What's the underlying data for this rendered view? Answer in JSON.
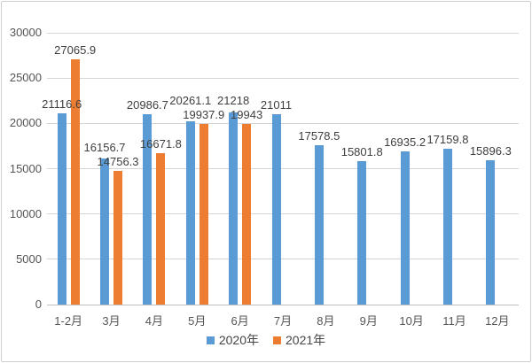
{
  "chart_data": {
    "type": "bar",
    "title": "",
    "xlabel": "",
    "ylabel": "",
    "categories": [
      "1-2月",
      "3月",
      "4月",
      "5月",
      "6月",
      "7月",
      "8月",
      "9月",
      "10月",
      "11月",
      "12月"
    ],
    "series": [
      {
        "name": "2020年",
        "color": "#5B9BD5",
        "values": [
          21116.6,
          16156.7,
          20986.7,
          20261.1,
          21218,
          21011,
          17578.5,
          15801.8,
          16935.2,
          17159.8,
          15896.3
        ]
      },
      {
        "name": "2021年",
        "color": "#ED7D31",
        "values": [
          27065.9,
          14756.3,
          16671.8,
          19937.9,
          19943,
          null,
          null,
          null,
          null,
          null,
          null
        ]
      }
    ],
    "ylim": [
      0,
      30000
    ],
    "yticks": [
      0,
      5000,
      10000,
      15000,
      20000,
      25000,
      30000
    ],
    "grid": true,
    "data_labels": true,
    "legend_position": "bottom"
  },
  "styles": {
    "background": "#ffffff",
    "border_color": "#cfcfcf",
    "grid_color": "#d6d6d6",
    "axis_line_color": "#c0c0c0",
    "tick_label_color": "#555555",
    "data_label_color": "#3f3f3f",
    "legend_text_color": "#444444"
  }
}
